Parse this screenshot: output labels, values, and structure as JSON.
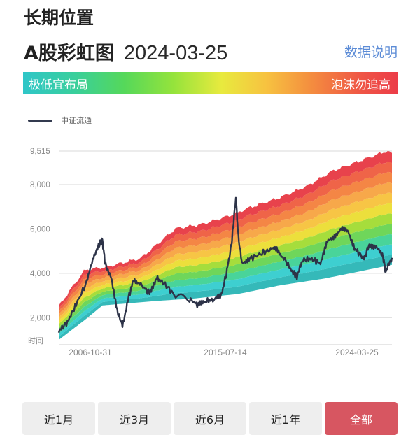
{
  "header": {
    "section_title": "长期位置",
    "title": "A股彩虹图",
    "date": "2024-03-25",
    "info_link": "数据说明"
  },
  "rainbow_bar": {
    "left_label": "极低宜布局",
    "right_label": "泡沫勿追高"
  },
  "legend": {
    "series_label": "中证流通"
  },
  "chart_data": {
    "type": "area",
    "series_name": "中证流通",
    "y_ticks": [
      "9,515",
      "8,000",
      "6,000",
      "4,000",
      "2,000"
    ],
    "y_tick_values": [
      9515,
      8000,
      6000,
      4000,
      2000
    ],
    "y_axis_unit_label": "时间",
    "x_ticks": [
      "2006-10-31",
      "2015-07-14",
      "2024-03-25"
    ],
    "x_range": [
      2005.3,
      2024.4
    ],
    "ylim": [
      1000,
      9515
    ],
    "band_colors": [
      "#35b9b9",
      "#3ecfd0",
      "#49d49a",
      "#6fd65a",
      "#a6dd3c",
      "#ecdf3c",
      "#f7c545",
      "#f7a84a",
      "#f48645",
      "#ef6448",
      "#e8424c"
    ],
    "bands_bottom": [
      [
        2005.3,
        1000
      ],
      [
        2006.8,
        1900
      ],
      [
        2007.8,
        2550
      ],
      [
        2011.0,
        2760
      ],
      [
        2013.0,
        2860
      ],
      [
        2015.6,
        3070
      ],
      [
        2018.0,
        3460
      ],
      [
        2020.5,
        3760
      ],
      [
        2024.4,
        4380
      ]
    ],
    "bands_top": [
      [
        2005.3,
        2500
      ],
      [
        2006.0,
        3300
      ],
      [
        2006.8,
        4150
      ],
      [
        2008.0,
        4280
      ],
      [
        2010.0,
        4680
      ],
      [
        2012.0,
        6020
      ],
      [
        2013.5,
        6210
      ],
      [
        2015.5,
        6700
      ],
      [
        2016.0,
        6900
      ],
      [
        2018.0,
        7420
      ],
      [
        2019.5,
        7920
      ],
      [
        2021.0,
        8620
      ],
      [
        2022.5,
        9050
      ],
      [
        2024.1,
        9515
      ],
      [
        2024.4,
        9400
      ]
    ],
    "index_line": [
      [
        2005.3,
        1400
      ],
      [
        2005.8,
        1800
      ],
      [
        2006.3,
        2600
      ],
      [
        2006.9,
        3600
      ],
      [
        2007.3,
        4700
      ],
      [
        2007.55,
        5200
      ],
      [
        2007.8,
        5500
      ],
      [
        2007.95,
        4500
      ],
      [
        2008.3,
        3800
      ],
      [
        2008.7,
        2200
      ],
      [
        2008.95,
        1650
      ],
      [
        2009.3,
        2900
      ],
      [
        2009.6,
        3750
      ],
      [
        2010.0,
        3500
      ],
      [
        2010.5,
        3100
      ],
      [
        2010.9,
        3800
      ],
      [
        2011.4,
        3500
      ],
      [
        2012.0,
        2950
      ],
      [
        2012.8,
        2850
      ],
      [
        2013.3,
        2550
      ],
      [
        2013.7,
        2750
      ],
      [
        2014.2,
        2800
      ],
      [
        2014.6,
        2950
      ],
      [
        2014.9,
        3950
      ],
      [
        2015.2,
        5300
      ],
      [
        2015.45,
        7400
      ],
      [
        2015.6,
        5600
      ],
      [
        2015.8,
        4500
      ],
      [
        2016.2,
        4650
      ],
      [
        2016.8,
        4850
      ],
      [
        2017.4,
        5050
      ],
      [
        2017.8,
        5100
      ],
      [
        2018.2,
        4700
      ],
      [
        2018.7,
        4050
      ],
      [
        2018.95,
        3850
      ],
      [
        2019.3,
        4600
      ],
      [
        2019.8,
        4650
      ],
      [
        2020.3,
        4450
      ],
      [
        2020.7,
        5400
      ],
      [
        2021.1,
        5700
      ],
      [
        2021.5,
        6000
      ],
      [
        2021.9,
        5850
      ],
      [
        2022.3,
        5100
      ],
      [
        2022.8,
        4650
      ],
      [
        2023.1,
        5300
      ],
      [
        2023.5,
        5200
      ],
      [
        2023.9,
        4700
      ],
      [
        2024.05,
        4050
      ],
      [
        2024.4,
        4700
      ]
    ]
  },
  "range_buttons": [
    "近1月",
    "近3月",
    "近6月",
    "近1年",
    "全部"
  ],
  "active_button": "全部"
}
